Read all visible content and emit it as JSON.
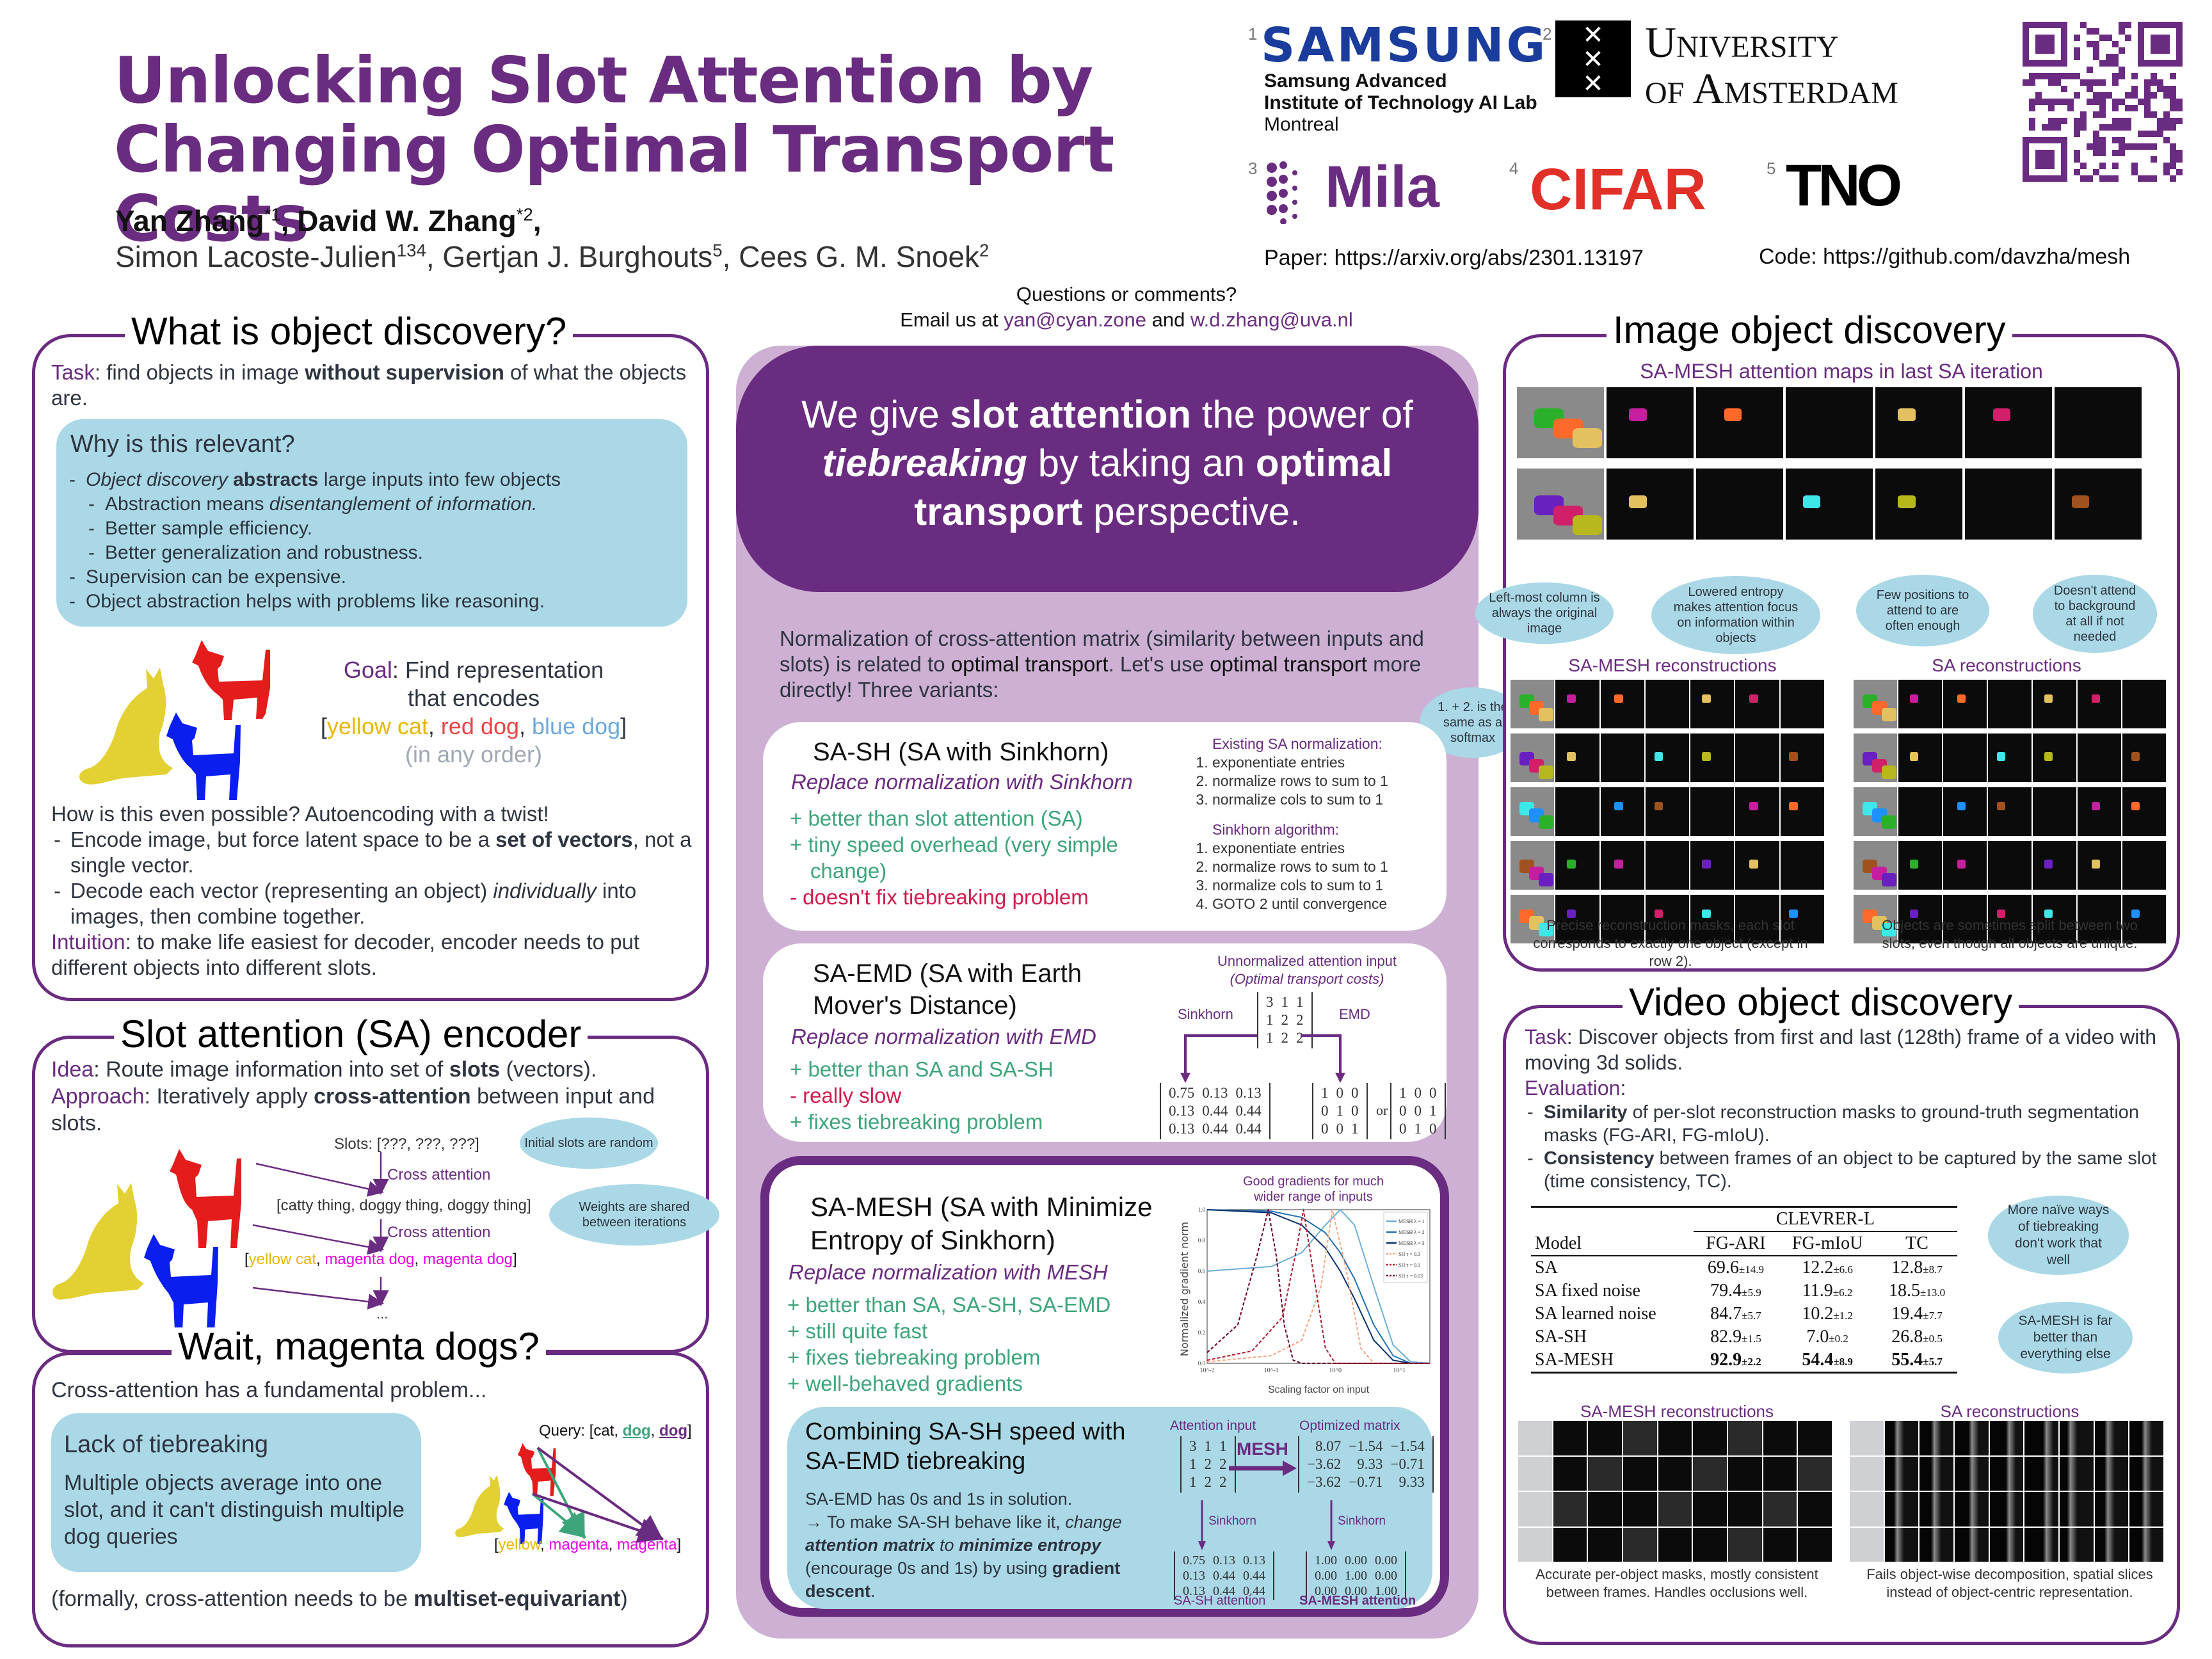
{
  "header": {
    "title_line1": "Unlocking Slot Attention by",
    "title_line2": "Changing Optimal Transport Costs",
    "authors_primary": [
      {
        "name": "Yan Zhang",
        "sup": "*1"
      },
      {
        "name": "David W. Zhang",
        "sup": "*2"
      }
    ],
    "authors_secondary": [
      {
        "name": "Simon Lacoste-Julien",
        "sup": "134"
      },
      {
        "name": "Gertjan J. Burghouts",
        "sup": "5"
      },
      {
        "name": "Cees G. M. Snoek",
        "sup": "2"
      }
    ],
    "affiliations": [
      {
        "num": "1",
        "logo": "SAMSUNG",
        "subtitle_lines": [
          "Samsung Advanced",
          "Institute of Technology AI Lab",
          "Montreal"
        ]
      },
      {
        "num": "2",
        "logo_lines": [
          "University",
          "of Amsterdam"
        ],
        "shield": "X\nX\nX"
      },
      {
        "num": "3",
        "logo": "Mila"
      },
      {
        "num": "4",
        "logo": "CIFAR"
      },
      {
        "num": "5",
        "logo": "TNO"
      }
    ],
    "paper_link": "Paper: https://arxiv.org/abs/2301.13197",
    "code_link": "Code: https://github.com/davzha/mesh",
    "contact_line1": "Questions or comments?",
    "contact_prefix": "Email us at ",
    "contact_email1": "yan@cyan.zone",
    "contact_and": " and ",
    "contact_email2": "w.d.zhang@uva.nl"
  },
  "what_is": {
    "title": "What is object discovery?",
    "task_label": "Task",
    "task_text1": ": find objects in image ",
    "task_bold": "without supervision",
    "task_text2": " of what the objects are.",
    "why_title": "Why is this relevant?",
    "why_items": [
      {
        "level": 0,
        "italic": "Object discovery",
        "bold": " abstracts",
        "text": " large inputs into few objects"
      },
      {
        "level": 1,
        "text": "Abstraction means ",
        "italic_end": "disentanglement of information."
      },
      {
        "level": 1,
        "text": "Better sample efficiency."
      },
      {
        "level": 1,
        "text": "Better generalization and robustness."
      },
      {
        "level": 0,
        "text": "Supervision can be expensive."
      },
      {
        "level": 0,
        "text": "Object abstraction helps with problems like reasoning."
      }
    ],
    "goal_label": "Goal",
    "goal_text1": ": Find representation",
    "goal_text2": "that encodes",
    "goal_set": [
      {
        "text": "yellow cat",
        "color": "#e6b800"
      },
      {
        "text": "red dog",
        "color": "#e84545"
      },
      {
        "text": "blue dog",
        "color": "#6fa8dc"
      }
    ],
    "goal_any_order": "(in any order)",
    "how_text": "How is this even possible? Autoencoding with a twist!",
    "how_item1_text": "Encode image, but force latent space to be a ",
    "how_item1_bold": "set of vectors",
    "how_item1_end": ", not a single vector.",
    "how_item2_text": "Decode each vector (representing an object) ",
    "how_item2_italic": "individually",
    "how_item2_end": " into images, then combine together.",
    "intuition_label": "Intuition",
    "intuition_text": ": to make life easiest for decoder, encoder needs to put different objects into different slots."
  },
  "slot_attention": {
    "title": "Slot attention (SA) encoder",
    "idea_label": "Idea",
    "idea_text": ": Route image information into set of ",
    "idea_bold": "slots",
    "idea_end": " (vectors).",
    "approach_label": "Approach",
    "approach_text": ": Iteratively apply ",
    "approach_bold": "cross-attention",
    "approach_end": " between input and slots.",
    "slots_init": "Slots: [???, ???, ???]",
    "cross_attention": "Cross attention",
    "iteration1": "[catty thing, doggy thing, doggy thing]",
    "iteration2_parts": [
      {
        "text": "yellow cat",
        "color": "#e6b800"
      },
      {
        "text": "magenta dog",
        "color": "#e600e6"
      },
      {
        "text": "magenta dog",
        "color": "#e600e6"
      }
    ],
    "ellipsis": "...",
    "bubble_initial": "Initial slots are random",
    "bubble_weights": "Weights are shared between iterations"
  },
  "magenta": {
    "title": "Wait, magenta dogs?",
    "intro": "Cross-attention has a fundamental problem...",
    "box_title": "Lack of tiebreaking",
    "box_text": "Multiple objects average into one slot, and it can't distinguish multiple dog queries",
    "query_label": "Query: [cat, ",
    "query_dog1": "dog",
    "query_dog2": "dog",
    "output_parts": [
      {
        "text": "yellow",
        "color": "#e6b800"
      },
      {
        "text": "magenta",
        "color": "#e600e6"
      },
      {
        "text": "magenta",
        "color": "#e600e6"
      }
    ],
    "formal_text": "(formally, cross-attention needs to be ",
    "formal_bold": "multiset-equivariant",
    "formal_end": ")"
  },
  "center": {
    "hero_parts": [
      "We give ",
      "slot attention",
      " the power of ",
      "tiebreaking",
      " by taking an ",
      "optimal transport",
      " perspective."
    ],
    "norm_text1": "Normalization of cross-attention matrix (similarity between inputs and slots) is related to ",
    "norm_ot1": "optimal transport",
    "norm_text2": ". Let's use ",
    "norm_ot2": "optimal transport",
    "norm_text3": " more directly! Three variants:",
    "bubble_softmax": "1. + 2. is the same as a softmax",
    "sash": {
      "title": "SA-SH (SA with Sinkhorn)",
      "subtitle": "Replace normalization with Sinkhorn",
      "pros_cons": [
        {
          "sign": "+",
          "text": "better than slot attention (SA)",
          "type": "pro"
        },
        {
          "sign": "+",
          "text": "tiny speed overhead (very simple change)",
          "type": "pro"
        },
        {
          "sign": "-",
          "text": "doesn't fix tiebreaking problem",
          "type": "con"
        }
      ],
      "existing_title": "Existing SA normalization:",
      "existing_steps": [
        "exponentiate entries",
        "normalize rows to sum to 1",
        "normalize cols to sum to 1"
      ],
      "sinkhorn_title": "Sinkhorn algorithm:",
      "sinkhorn_steps": [
        "exponentiate entries",
        "normalize rows to sum to 1",
        "normalize cols to sum to 1",
        "GOTO 2 until convergence"
      ]
    },
    "saemd": {
      "title_line1": "SA-EMD (SA with Earth",
      "title_line2": "Mover's Distance)",
      "subtitle": "Replace normalization with EMD",
      "pros_cons": [
        {
          "sign": "+",
          "text": "better than SA and SA-SH",
          "type": "pro"
        },
        {
          "sign": "-",
          "text": "really slow",
          "type": "con"
        },
        {
          "sign": "+",
          "text": "fixes tiebreaking problem",
          "type": "pro"
        }
      ],
      "diagram_title": "Unnormalized attention input",
      "diagram_subtitle": "(Optimal transport costs)",
      "label_sinkhorn": "Sinkhorn",
      "label_emd": "EMD",
      "input_matrix": [
        [
          "3",
          "1",
          "1"
        ],
        [
          "1",
          "2",
          "2"
        ],
        [
          "1",
          "2",
          "2"
        ]
      ],
      "sinkhorn_matrix": [
        [
          "0.75",
          "0.13",
          "0.13"
        ],
        [
          "0.13",
          "0.44",
          "0.44"
        ],
        [
          "0.13",
          "0.44",
          "0.44"
        ]
      ],
      "emd_matrix_a": [
        [
          "1",
          "0",
          "0"
        ],
        [
          "0",
          "1",
          "0"
        ],
        [
          "0",
          "0",
          "1"
        ]
      ],
      "or": "or",
      "emd_matrix_b": [
        [
          "1",
          "0",
          "0"
        ],
        [
          "0",
          "0",
          "1"
        ],
        [
          "0",
          "1",
          "0"
        ]
      ]
    },
    "samesh": {
      "title_line1": "SA-MESH (SA with Minimize",
      "title_line2": "Entropy of Sinkhorn)",
      "subtitle": "Replace normalization with MESH",
      "pros_cons": [
        {
          "sign": "+",
          "text": "better than SA, SA-SH, SA-EMD",
          "type": "pro"
        },
        {
          "sign": "+",
          "text": "still quite fast",
          "type": "pro"
        },
        {
          "sign": "+",
          "text": "fixes tiebreaking problem",
          "type": "pro"
        },
        {
          "sign": "+",
          "text": "well-behaved gradients",
          "type": "pro"
        }
      ],
      "chart_caption": "Good gradients for much wider range of inputs"
    },
    "combine": {
      "title_line1": "Combining SA-SH speed with",
      "title_line2": "SA-EMD tiebreaking",
      "text1": "SA-EMD has 0s and 1s in solution.",
      "text2": "→ To make SA-SH behave like it, ",
      "text2_italic": "change",
      "bold_italic1": "attention matrix",
      "text3": " to ",
      "bold_italic2": "minimize entropy",
      "text4": " (encourage 0s and 1s) by using ",
      "bold1": "gradient descent",
      "text5": ".",
      "label_attention_input": "Attention input",
      "label_optimized": "Optimized matrix",
      "label_mesh": "MESH",
      "label_sinkhorn": "Sinkhorn",
      "label_sash_attention": "SA-SH attention",
      "label_samesh_attention": "SA-MESH attention",
      "input_matrix": [
        [
          "3",
          "1",
          "1"
        ],
        [
          "1",
          "2",
          "2"
        ],
        [
          "1",
          "2",
          "2"
        ]
      ],
      "optimized_matrix": [
        [
          "8.07",
          "−1.54",
          "−1.54"
        ],
        [
          "−3.62",
          "9.33",
          "−0.71"
        ],
        [
          "−3.62",
          "−0.71",
          "9.33"
        ]
      ],
      "sash_matrix": [
        [
          "0.75",
          "0.13",
          "0.13"
        ],
        [
          "0.13",
          "0.44",
          "0.44"
        ],
        [
          "0.13",
          "0.44",
          "0.44"
        ]
      ],
      "samesh_matrix": [
        [
          "1.00",
          "0.00",
          "0.00"
        ],
        [
          "0.00",
          "1.00",
          "0.00"
        ],
        [
          "0.00",
          "0.00",
          "1.00"
        ]
      ]
    }
  },
  "image_discovery": {
    "title": "Image object discovery",
    "attention_caption": "SA-MESH attention maps in last SA iteration",
    "bubbles": [
      "Left-most column is always the original image",
      "Lowered entropy makes attention focus on information within objects",
      "Few positions to attend to are often enough",
      "Doesn't attend to background at all if not needed"
    ],
    "mesh_recon_title": "SA-MESH reconstructions",
    "sa_recon_title": "SA reconstructions",
    "mesh_recon_caption": "Precise reconstruction masks, each slot corresponds to exactly one object (except in row 2).",
    "sa_recon_caption": "Objects are sometimes split between two slots, even though all objects are unique."
  },
  "video_discovery": {
    "title": "Video object discovery",
    "task_label": "Task",
    "task_text": ": Discover objects from first and last (128th) frame of a video with moving 3d solids.",
    "eval_label": "Evaluation",
    "eval_items": [
      {
        "bold": "Similarity",
        "text": " of per-slot reconstruction masks to ground-truth segmentation masks (FG-ARI, FG-mIoU)."
      },
      {
        "bold": "Consistency",
        "text": " between frames of an object to be captured by the same slot (time consistency, TC)."
      }
    ],
    "table": {
      "dataset": "CLEVRER-L",
      "columns": [
        "Model",
        "FG-ARI",
        "FG-mIoU",
        "TC"
      ],
      "rows": [
        {
          "model": "SA",
          "fgari": "69.6",
          "fgari_std": "±14.9",
          "fgmiou": "12.2",
          "fgmiou_std": "±6.6",
          "tc": "12.8",
          "tc_std": "±8.7"
        },
        {
          "model": "SA fixed noise",
          "fgari": "79.4",
          "fgari_std": "±5.9",
          "fgmiou": "11.9",
          "fgmiou_std": "±6.2",
          "tc": "18.5",
          "tc_std": "±13.0"
        },
        {
          "model": "SA learned noise",
          "fgari": "84.7",
          "fgari_std": "±5.7",
          "fgmiou": "10.2",
          "fgmiou_std": "±1.2",
          "tc": "19.4",
          "tc_std": "±7.7"
        },
        {
          "model": "SA-SH",
          "fgari": "82.9",
          "fgari_std": "±1.5",
          "fgmiou": "7.0",
          "fgmiou_std": "±0.2",
          "tc": "26.8",
          "tc_std": "±0.5"
        },
        {
          "model": "SA-MESH",
          "fgari": "92.9",
          "fgari_std": "±2.2",
          "fgmiou": "54.4",
          "fgmiou_std": "±8.9",
          "tc": "55.4",
          "tc_std": "±5.7",
          "best": true
        }
      ]
    },
    "bubble_naive": "More naïve ways of tiebreaking don't work that well",
    "bubble_mesh": "SA-MESH is far better than everything else",
    "mesh_recon_title": "SA-MESH reconstructions",
    "sa_recon_title": "SA reconstructions",
    "mesh_recon_caption": "Accurate per-object masks, mostly consistent between frames. Handles occlusions well.",
    "sa_recon_caption": "Fails object-wise decomposition, spatial slices instead of object-centric representation."
  },
  "chart_data": {
    "type": "line",
    "title": "Good gradients for much wider range of inputs",
    "xlabel": "Scaling factor on input",
    "ylabel": "Normalized gradient norm",
    "xscale": "log",
    "xlim": [
      0.01,
      30
    ],
    "ylim": [
      0,
      1.0
    ],
    "yticks": [
      0.0,
      0.2,
      0.4,
      0.6,
      0.8,
      1.0
    ],
    "xticks": [
      "10^-2",
      "10^-1",
      "10^0",
      "10^1"
    ],
    "legend_position": "top-right",
    "series": [
      {
        "name": "MESH λ = 1",
        "style": "solid",
        "color": "#6baed6",
        "x": [
          0.01,
          0.1,
          0.3,
          0.7,
          1.2,
          2,
          4,
          8,
          15,
          30
        ],
        "y": [
          0.6,
          0.63,
          0.72,
          0.9,
          1.0,
          0.9,
          0.5,
          0.12,
          0.01,
          0.0
        ]
      },
      {
        "name": "MESH λ = 2",
        "style": "solid",
        "color": "#2171b5",
        "x": [
          0.01,
          0.1,
          0.3,
          0.7,
          1.2,
          2,
          4,
          8,
          15,
          30
        ],
        "y": [
          1.0,
          0.99,
          0.95,
          0.85,
          0.72,
          0.55,
          0.25,
          0.05,
          0.0,
          0.0
        ]
      },
      {
        "name": "MESH λ = 3",
        "style": "solid",
        "color": "#08306b",
        "x": [
          0.01,
          0.1,
          0.3,
          0.7,
          1.2,
          2,
          4,
          8,
          15,
          30
        ],
        "y": [
          1.0,
          0.98,
          0.9,
          0.75,
          0.6,
          0.42,
          0.15,
          0.02,
          0.0,
          0.0
        ]
      },
      {
        "name": "SH τ = 0.3",
        "style": "dashed",
        "color": "#f4a582",
        "x": [
          0.01,
          0.1,
          0.3,
          0.6,
          0.9,
          1.5,
          2.5,
          4,
          30
        ],
        "y": [
          0.01,
          0.05,
          0.15,
          0.5,
          1.0,
          0.6,
          0.1,
          0.0,
          0.0
        ]
      },
      {
        "name": "SH τ = 0.1",
        "style": "dashed",
        "color": "#b2182b",
        "x": [
          0.01,
          0.05,
          0.15,
          0.25,
          0.32,
          0.45,
          0.7,
          1,
          30
        ],
        "y": [
          0.02,
          0.08,
          0.3,
          0.75,
          1.0,
          0.6,
          0.1,
          0.0,
          0.0
        ]
      },
      {
        "name": "SH τ = 0.03",
        "style": "dashed",
        "color": "#67001f",
        "x": [
          0.01,
          0.03,
          0.06,
          0.09,
          0.12,
          0.16,
          0.22,
          0.3,
          30
        ],
        "y": [
          0.07,
          0.25,
          0.7,
          1.0,
          0.7,
          0.25,
          0.02,
          0.0,
          0.0
        ]
      }
    ]
  }
}
